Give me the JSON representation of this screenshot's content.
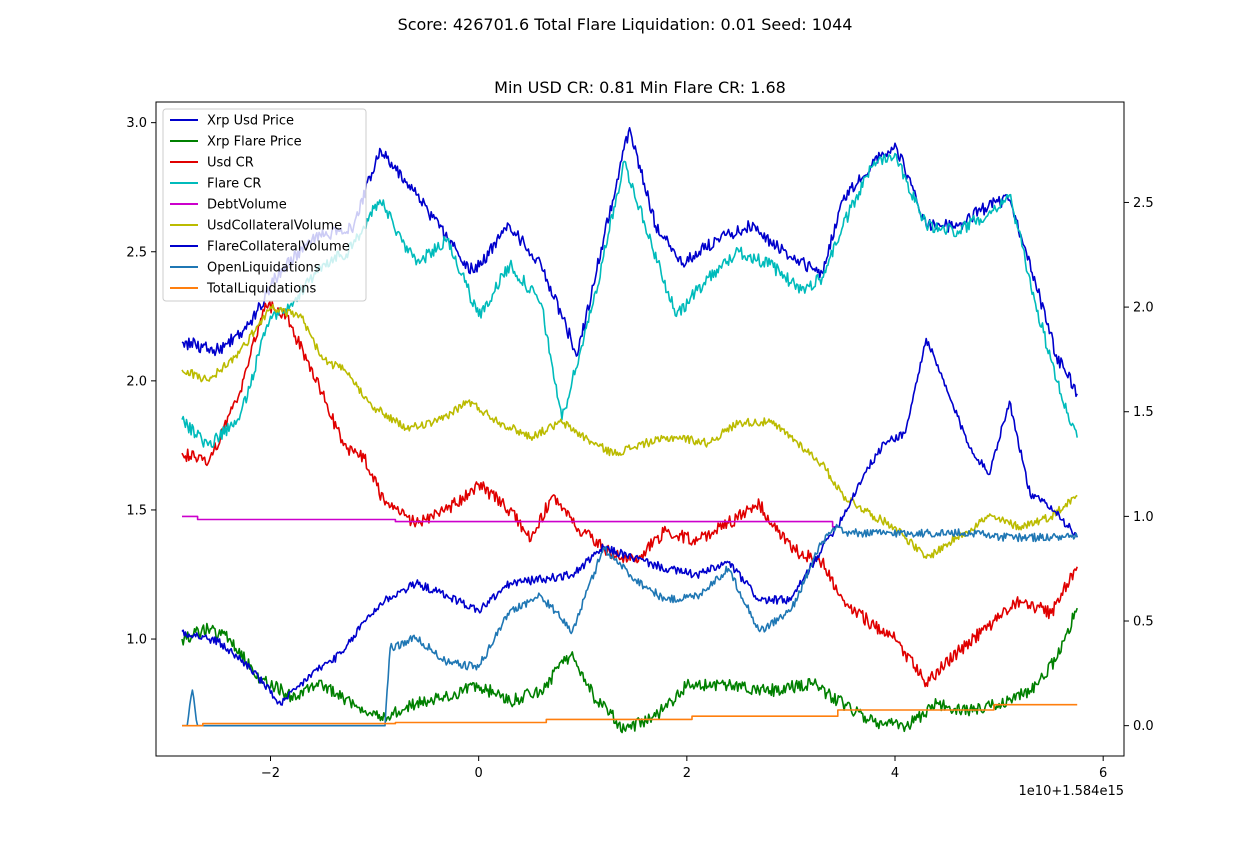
{
  "figure": {
    "suptitle": "Score: 426701.6 Total Flare Liquidation: 0.01 Seed: 1044",
    "title": "Min USD CR: 0.81 Min Flare CR: 1.68",
    "x_offset_label": "1e10+1.584e15"
  },
  "chart_data": {
    "type": "line",
    "title": "Min USD CR: 0.81 Min Flare CR: 1.68",
    "xlabel": "",
    "ylabel": "",
    "xlim": [
      -3.1,
      6.2
    ],
    "ylim_left": [
      0.547,
      3.08
    ],
    "ylim_right": [
      -0.145,
      2.98
    ],
    "x_ticks": [
      -2,
      0,
      2,
      4,
      6
    ],
    "x_tick_labels": [
      "−2",
      "0",
      "2",
      "4",
      "6"
    ],
    "y_left_ticks": [
      1.0,
      1.5,
      2.0,
      2.5,
      3.0
    ],
    "y_left_tick_labels": [
      "1.0",
      "1.5",
      "2.0",
      "2.5",
      "3.0"
    ],
    "y_right_ticks": [
      0.0,
      0.5,
      1.0,
      1.5,
      2.0,
      2.5
    ],
    "y_right_tick_labels": [
      "0.0",
      "0.5",
      "1.0",
      "1.5",
      "2.0",
      "2.5"
    ],
    "grid": false,
    "legend_placement": "top-left",
    "series": [
      {
        "name": "Xrp Usd Price",
        "color": "#0000cc",
        "axis": "left",
        "x": [
          -2.85,
          -2.5,
          -2.2,
          -1.95,
          -1.6,
          -1.2,
          -0.95,
          -0.6,
          -0.3,
          -0.05,
          0.3,
          0.6,
          0.95,
          1.2,
          1.45,
          1.7,
          1.95,
          2.3,
          2.6,
          3.0,
          3.3,
          3.5,
          3.8,
          4.0,
          4.3,
          4.6,
          4.9,
          5.1,
          5.35,
          5.55,
          5.75
        ],
        "values": [
          2.15,
          2.12,
          2.22,
          2.4,
          2.55,
          2.6,
          2.9,
          2.72,
          2.55,
          2.42,
          2.6,
          2.45,
          2.1,
          2.55,
          2.98,
          2.6,
          2.45,
          2.55,
          2.6,
          2.48,
          2.42,
          2.7,
          2.85,
          2.92,
          2.6,
          2.6,
          2.68,
          2.7,
          2.38,
          2.1,
          1.95
        ]
      },
      {
        "name": "Xrp Flare Price",
        "color": "#008000",
        "axis": "left",
        "x": [
          -2.85,
          -2.6,
          -2.4,
          -2.1,
          -1.8,
          -1.5,
          -1.2,
          -0.9,
          -0.6,
          -0.3,
          0,
          0.3,
          0.6,
          0.9,
          1.1,
          1.4,
          1.7,
          2.0,
          2.4,
          2.8,
          3.2,
          3.5,
          3.8,
          4.1,
          4.4,
          4.7,
          5.0,
          5.3,
          5.55,
          5.75
        ],
        "values": [
          1.0,
          1.04,
          1.0,
          0.85,
          0.78,
          0.82,
          0.75,
          0.7,
          0.75,
          0.78,
          0.82,
          0.76,
          0.8,
          0.95,
          0.78,
          0.65,
          0.7,
          0.82,
          0.82,
          0.8,
          0.83,
          0.75,
          0.68,
          0.66,
          0.75,
          0.72,
          0.75,
          0.8,
          0.92,
          1.12
        ]
      },
      {
        "name": "Usd CR",
        "color": "#e00000",
        "axis": "left",
        "x": [
          -2.85,
          -2.6,
          -2.3,
          -2.05,
          -1.85,
          -1.5,
          -1.3,
          -1.1,
          -0.9,
          -0.6,
          -0.3,
          0,
          0.3,
          0.5,
          0.7,
          0.9,
          1.2,
          1.5,
          1.8,
          2.1,
          2.4,
          2.7,
          3.0,
          3.3,
          3.5,
          3.8,
          4.0,
          4.3,
          4.6,
          4.9,
          5.2,
          5.5,
          5.75
        ],
        "values": [
          1.72,
          1.68,
          1.95,
          2.3,
          2.25,
          1.95,
          1.75,
          1.7,
          1.52,
          1.45,
          1.5,
          1.6,
          1.5,
          1.38,
          1.55,
          1.45,
          1.35,
          1.3,
          1.42,
          1.38,
          1.45,
          1.52,
          1.35,
          1.3,
          1.15,
          1.05,
          1.0,
          0.83,
          0.95,
          1.05,
          1.15,
          1.1,
          1.28
        ]
      },
      {
        "name": "Flare CR",
        "color": "#00bbbb",
        "axis": "left",
        "x": [
          -2.85,
          -2.6,
          -2.3,
          -2.0,
          -1.8,
          -1.5,
          -1.25,
          -0.95,
          -0.6,
          -0.3,
          0,
          0.3,
          0.6,
          0.8,
          1.1,
          1.4,
          1.6,
          1.9,
          2.2,
          2.5,
          2.8,
          3.1,
          3.3,
          3.5,
          3.8,
          4.0,
          4.3,
          4.6,
          4.9,
          5.1,
          5.35,
          5.55,
          5.75
        ],
        "values": [
          1.85,
          1.75,
          1.85,
          2.25,
          2.3,
          2.45,
          2.5,
          2.7,
          2.45,
          2.55,
          2.25,
          2.45,
          2.3,
          1.85,
          2.3,
          2.85,
          2.6,
          2.25,
          2.4,
          2.5,
          2.45,
          2.35,
          2.4,
          2.6,
          2.85,
          2.88,
          2.6,
          2.58,
          2.65,
          2.72,
          2.3,
          2.0,
          1.78
        ]
      },
      {
        "name": "DebtVolume",
        "color": "#cc00cc",
        "axis": "right",
        "x": [
          -2.85,
          -2.75,
          -2.7,
          -0.85,
          -0.8,
          3.4,
          3.45
        ],
        "values": [
          1.0,
          1.0,
          0.985,
          0.985,
          0.975,
          0.95,
          0.95
        ]
      },
      {
        "name": "UsdCollateralVolume",
        "color": "#bbbb00",
        "axis": "right",
        "x": [
          -2.85,
          -2.6,
          -2.3,
          -2.0,
          -1.7,
          -1.5,
          -1.3,
          -1.0,
          -0.7,
          -0.4,
          -0.1,
          0.2,
          0.5,
          0.8,
          1.1,
          1.3,
          1.6,
          1.9,
          2.2,
          2.5,
          2.8,
          3.0,
          3.3,
          3.5,
          3.8,
          4.0,
          4.3,
          4.6,
          4.9,
          5.2,
          5.5,
          5.75
        ],
        "values": [
          1.7,
          1.65,
          1.78,
          2.0,
          1.95,
          1.75,
          1.7,
          1.52,
          1.42,
          1.45,
          1.55,
          1.45,
          1.38,
          1.45,
          1.35,
          1.3,
          1.35,
          1.38,
          1.35,
          1.45,
          1.45,
          1.38,
          1.25,
          1.1,
          1.0,
          0.95,
          0.8,
          0.9,
          1.0,
          0.95,
          1.0,
          1.1
        ]
      },
      {
        "name": "FlareCollateralVolume",
        "color": "#0000cc",
        "axis": "right",
        "x": [
          -2.85,
          -2.5,
          -2.2,
          -1.9,
          -1.6,
          -1.3,
          -1.1,
          -0.9,
          -0.6,
          -0.3,
          0,
          0.3,
          0.6,
          0.9,
          1.2,
          1.5,
          1.8,
          2.1,
          2.4,
          2.7,
          3.0,
          3.3,
          3.5,
          3.7,
          3.9,
          4.1,
          4.3,
          4.5,
          4.7,
          4.9,
          5.1,
          5.3,
          5.5,
          5.75
        ],
        "values": [
          0.45,
          0.4,
          0.28,
          0.1,
          0.25,
          0.35,
          0.5,
          0.6,
          0.68,
          0.62,
          0.55,
          0.68,
          0.7,
          0.72,
          0.85,
          0.8,
          0.75,
          0.72,
          0.78,
          0.6,
          0.6,
          0.85,
          1.0,
          1.2,
          1.35,
          1.4,
          1.85,
          1.6,
          1.35,
          1.2,
          1.55,
          1.1,
          1.05,
          0.9
        ]
      },
      {
        "name": "OpenLiquidations",
        "color": "#1f77b4",
        "axis": "right",
        "x": [
          -2.85,
          -2.8,
          -2.75,
          -2.7,
          -2.65,
          -0.9,
          -0.85,
          -0.6,
          -0.3,
          0,
          0.3,
          0.6,
          0.9,
          1.2,
          1.5,
          1.8,
          2.1,
          2.4,
          2.7,
          3.0,
          3.3,
          3.45,
          3.5,
          4.9,
          4.95,
          5.75
        ],
        "values": [
          0.0,
          0.0,
          0.17,
          0.0,
          0.0,
          0.0,
          0.37,
          0.42,
          0.3,
          0.28,
          0.55,
          0.62,
          0.45,
          0.85,
          0.7,
          0.6,
          0.62,
          0.75,
          0.45,
          0.55,
          0.88,
          0.95,
          0.92,
          0.92,
          0.9,
          0.9
        ]
      },
      {
        "name": "TotalLiquidations",
        "color": "#ff7f0e",
        "axis": "right",
        "x": [
          -2.85,
          -2.7,
          -2.65,
          -0.85,
          -0.8,
          0.6,
          0.65,
          2.0,
          2.05,
          3.4,
          3.45,
          4.9,
          4.95,
          5.75
        ],
        "values": [
          0.0,
          0.0,
          0.01,
          0.01,
          0.015,
          0.015,
          0.03,
          0.03,
          0.045,
          0.045,
          0.075,
          0.075,
          0.1,
          0.1
        ]
      }
    ]
  }
}
